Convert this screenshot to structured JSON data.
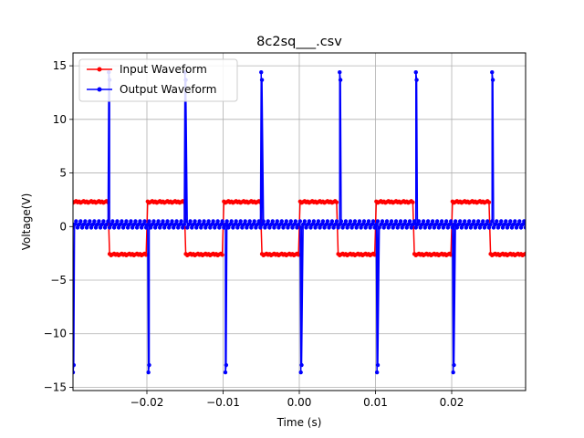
{
  "chart_data": {
    "type": "line",
    "title": "8c2sq___.csv",
    "xlabel": "Time (s)",
    "ylabel": "Voltage(V)",
    "xlim": [
      -0.0297,
      0.0297
    ],
    "ylim": [
      -15.3,
      16.2
    ],
    "xticks": [
      -0.02,
      -0.01,
      0.0,
      0.01,
      0.02
    ],
    "xtick_labels": [
      "−0.02",
      "−0.01",
      "0.00",
      "0.01",
      "0.02"
    ],
    "yticks": [
      -15,
      -10,
      -5,
      0,
      5,
      10,
      15
    ],
    "ytick_labels": [
      "−15",
      "−10",
      "−5",
      "0",
      "5",
      "10",
      "15"
    ],
    "grid": true,
    "legend_position": "top-left",
    "signal": {
      "period": 0.01,
      "x_start": -0.0297,
      "x_end": 0.0297,
      "sample_step": 0.0002
    },
    "series": [
      {
        "name": "Input Waveform",
        "color": "#ff0000",
        "marker": "dot",
        "high": 2.3,
        "low": -2.6,
        "first_rising_edge": -0.03,
        "duty": 0.5
      },
      {
        "name": "Output Waveform",
        "color": "#0000ff",
        "marker": "dot",
        "baseline": 0.2,
        "ripple": 0.3,
        "positive_spike": 14.4,
        "negative_spike": -13.6,
        "positive_spike_times": [
          -0.025,
          -0.015,
          -0.005,
          0.0053,
          0.0153,
          0.0253
        ],
        "negative_spike_times": [
          -0.0297,
          -0.0198,
          -0.0097,
          0.0002,
          0.0102,
          0.0202
        ]
      }
    ]
  }
}
